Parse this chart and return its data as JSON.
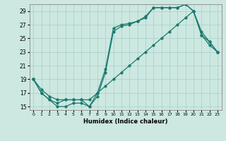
{
  "xlabel": "Humidex (Indice chaleur)",
  "background_color": "#cce8e0",
  "grid_color": "#aacccc",
  "line_color": "#1a7a6e",
  "xlim": [
    -0.5,
    23.5
  ],
  "ylim": [
    14.5,
    30.0
  ],
  "yticks": [
    15,
    17,
    19,
    21,
    23,
    25,
    27,
    29
  ],
  "xticks": [
    0,
    1,
    2,
    3,
    4,
    5,
    6,
    7,
    8,
    9,
    10,
    11,
    12,
    13,
    14,
    15,
    16,
    17,
    18,
    19,
    20,
    21,
    22,
    23
  ],
  "line1_x": [
    0,
    1,
    2,
    3,
    4,
    5,
    6,
    7,
    8,
    9,
    10,
    11,
    12,
    13,
    14,
    15,
    16,
    17,
    18,
    19,
    20,
    21,
    22,
    23
  ],
  "line1_y": [
    19,
    17,
    16,
    15,
    15,
    15.5,
    15.5,
    15,
    17,
    20.5,
    26.5,
    27,
    27.2,
    27.5,
    28.2,
    29.5,
    29.5,
    29.5,
    29.5,
    30,
    29,
    25.5,
    24.5,
    23
  ],
  "line2_x": [
    0,
    1,
    2,
    3,
    4,
    5,
    6,
    7,
    8,
    9,
    10,
    11,
    12,
    13,
    14,
    15,
    16,
    17,
    18,
    19,
    20,
    21,
    22,
    23
  ],
  "line2_y": [
    19,
    17,
    16,
    15.5,
    16,
    16,
    16,
    15,
    16.5,
    20,
    26,
    26.8,
    27,
    27.5,
    28,
    29.5,
    29.5,
    29.5,
    29.5,
    30,
    29,
    26,
    24.5,
    23
  ],
  "line3_x": [
    0,
    1,
    2,
    3,
    4,
    5,
    6,
    7,
    8,
    9,
    10,
    11,
    12,
    13,
    14,
    15,
    16,
    17,
    18,
    19,
    20,
    21,
    22,
    23
  ],
  "line3_y": [
    19,
    17.5,
    16.5,
    16,
    16,
    16,
    16,
    16,
    17,
    18,
    19,
    20,
    21,
    22,
    23,
    24,
    25,
    26,
    27,
    28,
    29,
    25.5,
    24,
    23
  ]
}
